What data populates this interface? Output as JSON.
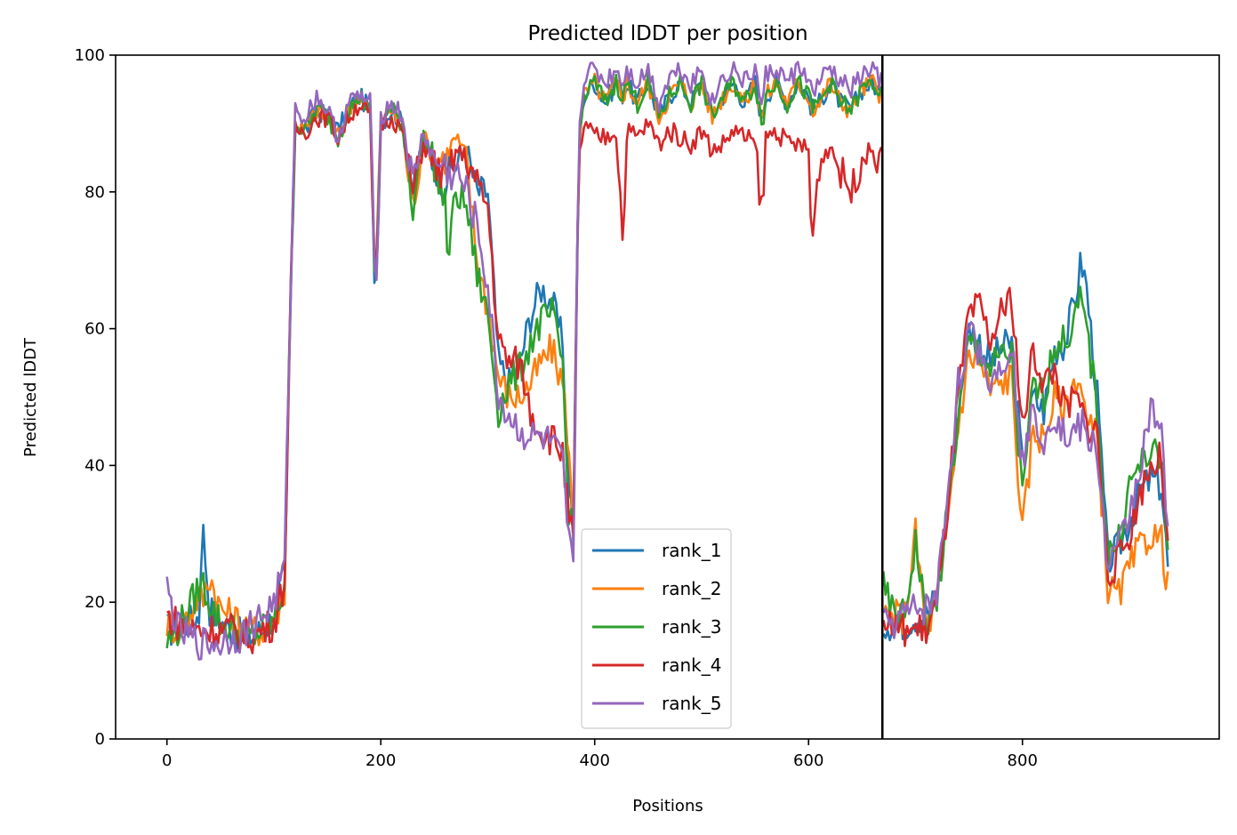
{
  "chart_data": {
    "type": "line",
    "title": "Predicted lDDT per position",
    "xlabel": "Positions",
    "ylabel": "Predicted lDDT",
    "xlim": [
      -48,
      984
    ],
    "ylim": [
      0,
      100
    ],
    "xticks": [
      0,
      200,
      400,
      600,
      800
    ],
    "yticks": [
      0,
      20,
      40,
      60,
      80,
      100
    ],
    "chain_boundary_x": 669,
    "grid": false,
    "legend_position": "lower-center",
    "x_anchor_positions": [
      0,
      10,
      20,
      30,
      33,
      40,
      50,
      60,
      70,
      80,
      90,
      100,
      110,
      115,
      120,
      130,
      140,
      150,
      160,
      170,
      180,
      190,
      195,
      200,
      210,
      220,
      230,
      240,
      250,
      260,
      263,
      270,
      280,
      290,
      300,
      310,
      320,
      330,
      340,
      350,
      360,
      370,
      375,
      380,
      385,
      390,
      400,
      410,
      420,
      427,
      430,
      440,
      450,
      460,
      470,
      480,
      490,
      500,
      510,
      520,
      530,
      540,
      550,
      557,
      560,
      570,
      580,
      590,
      600,
      603,
      610,
      620,
      630,
      640,
      650,
      660,
      668,
      670,
      680,
      690,
      700,
      710,
      720,
      730,
      740,
      750,
      760,
      770,
      780,
      790,
      800,
      810,
      820,
      830,
      840,
      850,
      855,
      860,
      870,
      880,
      890,
      900,
      910,
      920,
      930,
      936
    ],
    "series": [
      {
        "name": "rank_1",
        "color": "#1f77b4",
        "values": [
          16,
          16,
          17,
          18,
          32,
          19,
          17,
          16,
          15,
          15,
          16,
          18,
          24,
          60,
          90,
          89,
          92,
          91,
          89,
          92,
          94,
          92,
          63,
          90,
          92,
          90,
          80,
          88,
          84,
          81,
          83,
          84,
          86,
          80,
          80,
          55,
          52,
          55,
          62,
          66,
          64,
          58,
          40,
          30,
          86,
          94,
          96,
          93,
          96,
          94,
          96,
          93,
          96,
          91,
          94,
          96,
          93,
          96,
          91,
          94,
          96,
          93,
          96,
          90,
          94,
          96,
          93,
          96,
          94,
          92,
          93,
          96,
          93,
          92,
          95,
          96,
          94,
          17,
          17,
          17,
          18,
          18,
          21,
          34,
          48,
          60,
          58,
          55,
          57,
          58,
          40,
          50,
          48,
          57,
          58,
          65,
          70,
          66,
          50,
          26,
          28,
          32,
          36,
          38,
          37,
          25
        ]
      },
      {
        "name": "rank_2",
        "color": "#ff7f0e",
        "values": [
          17,
          16,
          18,
          21,
          20,
          24,
          19,
          18,
          17,
          16,
          16,
          17,
          22,
          60,
          90,
          89,
          92,
          91,
          88,
          92,
          94,
          92,
          65,
          91,
          92,
          89,
          78,
          88,
          85,
          85,
          86,
          88,
          85,
          70,
          63,
          53,
          50,
          50,
          52,
          55,
          57,
          52,
          44,
          30,
          87,
          94,
          96,
          93,
          96,
          94,
          96,
          93,
          96,
          91,
          94,
          96,
          93,
          96,
          91,
          94,
          96,
          93,
          96,
          90,
          94,
          96,
          93,
          96,
          94,
          92,
          93,
          96,
          93,
          92,
          95,
          96,
          94,
          18,
          18,
          18,
          30,
          16,
          20,
          32,
          46,
          56,
          55,
          51,
          52,
          53,
          30,
          45,
          44,
          50,
          48,
          53,
          52,
          46,
          44,
          22,
          21,
          25,
          28,
          30,
          29,
          22
        ]
      },
      {
        "name": "rank_3",
        "color": "#2ca02c",
        "values": [
          14,
          16,
          19,
          22,
          23,
          20,
          17,
          16,
          15,
          15,
          16,
          17,
          23,
          60,
          90,
          89,
          92,
          91,
          88,
          92,
          94,
          92,
          64,
          90,
          92,
          90,
          78,
          88,
          84,
          78,
          70,
          80,
          78,
          68,
          62,
          48,
          52,
          54,
          58,
          61,
          62,
          55,
          35,
          30,
          86,
          94,
          96,
          93,
          96,
          94,
          96,
          93,
          96,
          91,
          94,
          96,
          93,
          96,
          91,
          94,
          96,
          93,
          96,
          90,
          94,
          96,
          93,
          96,
          94,
          92,
          93,
          96,
          93,
          92,
          95,
          96,
          94,
          22,
          18,
          18,
          29,
          17,
          20,
          33,
          47,
          58,
          57,
          54,
          56,
          56,
          35,
          52,
          50,
          58,
          58,
          62,
          64,
          60,
          48,
          27,
          29,
          37,
          40,
          42,
          40,
          28
        ]
      },
      {
        "name": "rank_4",
        "color": "#d62728",
        "values": [
          18,
          17,
          16,
          16,
          16,
          16,
          16,
          16,
          15,
          15,
          16,
          17,
          23,
          60,
          89,
          89,
          91,
          91,
          88,
          91,
          93,
          91,
          63,
          90,
          91,
          89,
          80,
          87,
          84,
          82,
          82,
          86,
          85,
          81,
          78,
          58,
          55,
          55,
          48,
          45,
          44,
          42,
          33,
          29,
          84,
          90,
          88,
          88,
          89,
          72,
          89,
          88,
          90,
          87,
          89,
          88,
          87,
          89,
          86,
          87,
          89,
          88,
          87,
          76,
          88,
          89,
          87,
          87,
          86,
          72,
          84,
          87,
          83,
          80,
          85,
          86,
          84,
          18,
          16,
          16,
          16,
          16,
          20,
          34,
          50,
          62,
          63,
          58,
          62,
          65,
          45,
          57,
          52,
          54,
          48,
          50,
          48,
          46,
          45,
          24,
          26,
          30,
          36,
          40,
          41,
          27
        ]
      },
      {
        "name": "rank_5",
        "color": "#9467bd",
        "values": [
          22,
          16,
          15,
          14,
          14,
          14,
          14,
          15,
          15,
          17,
          18,
          20,
          25,
          62,
          92,
          91,
          94,
          92,
          88,
          93,
          94,
          93,
          64,
          91,
          93,
          91,
          81,
          89,
          84,
          84,
          82,
          83,
          80,
          75,
          66,
          50,
          47,
          45,
          44,
          44,
          43,
          40,
          30,
          24,
          88,
          97,
          98,
          96,
          98,
          96,
          98,
          96,
          98,
          93,
          97,
          98,
          96,
          98,
          93,
          97,
          98,
          96,
          98,
          92,
          97,
          98,
          96,
          98,
          97,
          94,
          96,
          98,
          96,
          95,
          97,
          98,
          96,
          17,
          17,
          18,
          19,
          19,
          21,
          36,
          52,
          59,
          57,
          52,
          55,
          58,
          40,
          48,
          44,
          48,
          44,
          45,
          46,
          44,
          42,
          25,
          28,
          33,
          40,
          48,
          44,
          32
        ]
      }
    ]
  }
}
